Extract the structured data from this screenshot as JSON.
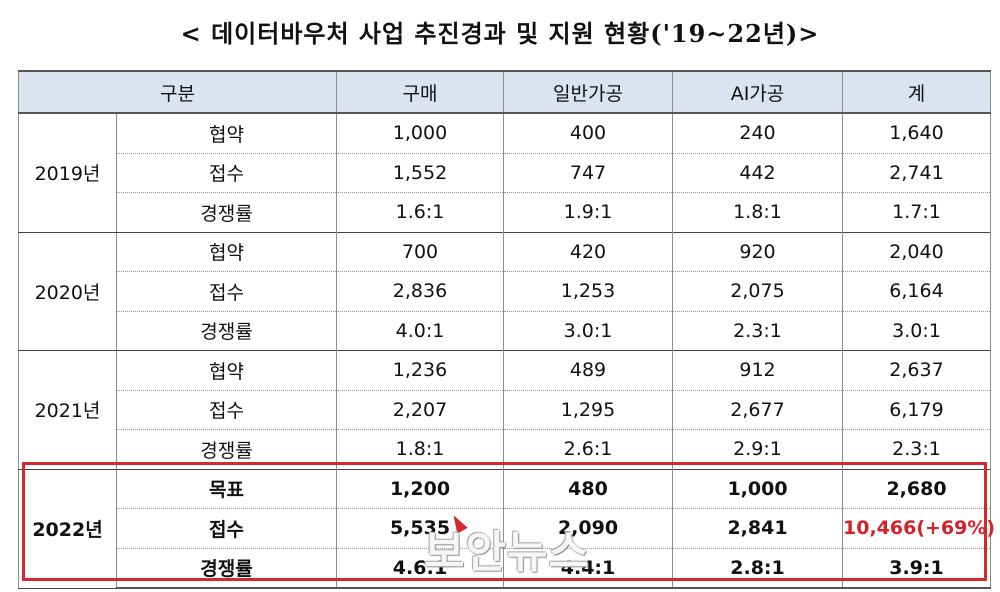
{
  "title": "< 데이터바우처 사업 추진경과 및 지원 현황('19~22년)>",
  "headers": [
    "구분",
    "구매",
    "일반가공",
    "AI가공",
    "계"
  ],
  "groups": [
    {
      "year": "2019년",
      "rows": [
        {
          "label": "협약",
          "values": [
            "1,000",
            "400",
            "240",
            "1,640"
          ]
        },
        {
          "label": "접수",
          "values": [
            "1,552",
            "747",
            "442",
            "2,741"
          ]
        },
        {
          "label": "경쟁률",
          "values": [
            "1.6:1",
            "1.9:1",
            "1.8:1",
            "1.7:1"
          ]
        }
      ]
    },
    {
      "year": "2020년",
      "rows": [
        {
          "label": "협약",
          "values": [
            "700",
            "420",
            "920",
            "2,040"
          ]
        },
        {
          "label": "접수",
          "values": [
            "2,836",
            "1,253",
            "2,075",
            "6,164"
          ]
        },
        {
          "label": "경쟁률",
          "values": [
            "4.0:1",
            "3.0:1",
            "2.3:1",
            "3.0:1"
          ]
        }
      ]
    },
    {
      "year": "2021년",
      "rows": [
        {
          "label": "협약",
          "values": [
            "1,236",
            "489",
            "912",
            "2,637"
          ]
        },
        {
          "label": "접수",
          "values": [
            "2,207",
            "1,295",
            "2,677",
            "6,179"
          ]
        },
        {
          "label": "경쟁률",
          "values": [
            "1.8:1",
            "2.6:1",
            "2.9:1",
            "2.3:1"
          ]
        }
      ]
    },
    {
      "year": "2022년",
      "rows": [
        {
          "label": "목표",
          "values": [
            "1,200",
            "480",
            "1,000",
            "2,680"
          ]
        },
        {
          "label": "접수",
          "values": [
            "5,535",
            "2,090",
            "2,841",
            "10,466(+69%)"
          ]
        },
        {
          "label": "경쟁률",
          "values": [
            "4.6:1",
            "4.4:1",
            "2.8:1",
            "3.9:1"
          ]
        }
      ]
    }
  ],
  "watermark": "보안뉴스",
  "colors": {
    "header_bg": "#dbe3f1",
    "highlight": "#d42a2e",
    "emphasis_text": "#d6212a"
  }
}
